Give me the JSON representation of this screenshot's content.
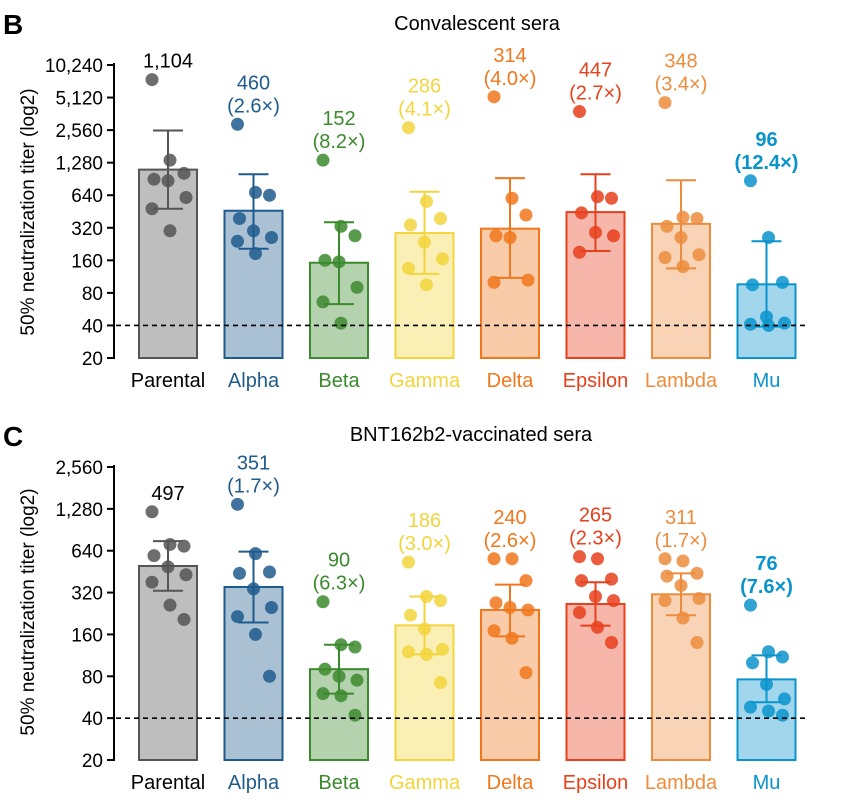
{
  "chart_data": [
    {
      "type": "bar",
      "panel": "B",
      "title": "Convalescent sera",
      "ylabel": "50% neutralization titer (log2)",
      "yscale": "log2",
      "ylim": [
        20,
        10240
      ],
      "yticks": [
        "20",
        "40",
        "80",
        "160",
        "320",
        "640",
        "1,280",
        "2,560",
        "5,120",
        "10,240"
      ],
      "threshold": 40,
      "categories": [
        "Parental",
        "Alpha",
        "Beta",
        "Gamma",
        "Delta",
        "Epsilon",
        "Lambda",
        "Mu"
      ],
      "colors": [
        "#555555",
        "#1e5b8c",
        "#3c8a2e",
        "#f2d53c",
        "#f0771c",
        "#e8401c",
        "#ec8c3c",
        "#0a94cc"
      ],
      "values": [
        1104,
        460,
        152,
        286,
        314,
        447,
        348,
        96
      ],
      "error_low": [
        480,
        205,
        63,
        120,
        110,
        195,
        135,
        39
      ],
      "error_high": [
        2540,
        1000,
        360,
        690,
        920,
        1000,
        880,
        240
      ],
      "labels": [
        "1,104",
        "460",
        "152",
        "286",
        "314",
        "447",
        "348",
        "96"
      ],
      "fold_labels": [
        "",
        "(2.6×)",
        "(8.2×)",
        "(4.1×)",
        "(4.0×)",
        "(2.7×)",
        "(3.4×)",
        "(12.4×)"
      ],
      "bold": [
        false,
        false,
        false,
        false,
        false,
        false,
        false,
        true
      ],
      "points": [
        [
          7500,
          1350,
          1020,
          900,
          870,
          610,
          480,
          300
        ],
        [
          2900,
          680,
          640,
          390,
          300,
          260,
          240,
          185
        ],
        [
          1350,
          330,
          270,
          160,
          155,
          90,
          66,
          42
        ],
        [
          2700,
          560,
          390,
          340,
          235,
          165,
          135,
          95
        ],
        [
          5200,
          600,
          420,
          270,
          260,
          105,
          100
        ],
        [
          3800,
          620,
          600,
          440,
          290,
          270,
          190
        ],
        [
          4600,
          400,
          390,
          330,
          260,
          180,
          170,
          140
        ],
        [
          870,
          260,
          100,
          95,
          48,
          42,
          41,
          40
        ]
      ]
    },
    {
      "type": "bar",
      "panel": "C",
      "title": "BNT162b2-vaccinated sera",
      "ylabel": "50% neutralization titer (log2)",
      "yscale": "log2",
      "ylim": [
        20,
        2560
      ],
      "yticks": [
        "20",
        "40",
        "80",
        "160",
        "320",
        "640",
        "1,280",
        "2,560"
      ],
      "threshold": 40,
      "categories": [
        "Parental",
        "Alpha",
        "Beta",
        "Gamma",
        "Delta",
        "Epsilon",
        "Lambda",
        "Mu"
      ],
      "colors": [
        "#555555",
        "#1e5b8c",
        "#3c8a2e",
        "#f2d53c",
        "#f0771c",
        "#e8401c",
        "#ec8c3c",
        "#0a94cc"
      ],
      "values": [
        497,
        351,
        90,
        186,
        240,
        265,
        311,
        76
      ],
      "error_low": [
        330,
        195,
        60,
        115,
        155,
        185,
        220,
        52
      ],
      "error_high": [
        750,
        630,
        135,
        300,
        365,
        380,
        440,
        113
      ],
      "labels": [
        "497",
        "351",
        "90",
        "186",
        "240",
        "265",
        "311",
        "76"
      ],
      "fold_labels": [
        "",
        "(1.7×)",
        "(6.3×)",
        "(3.0×)",
        "(2.6×)",
        "(2.3×)",
        "(1.7×)",
        "(7.6×)"
      ],
      "bold": [
        false,
        false,
        false,
        false,
        false,
        false,
        false,
        true
      ],
      "points": [
        [
          1220,
          710,
          690,
          590,
          490,
          430,
          380,
          260,
          205
        ],
        [
          1380,
          610,
          450,
          440,
          340,
          250,
          215,
          160,
          80
        ],
        [
          275,
          135,
          130,
          90,
          80,
          75,
          60,
          58,
          42
        ],
        [
          530,
          300,
          280,
          220,
          175,
          125,
          120,
          115,
          72
        ],
        [
          560,
          560,
          390,
          270,
          250,
          240,
          170,
          150,
          85
        ],
        [
          580,
          560,
          400,
          390,
          300,
          280,
          230,
          180,
          140
        ],
        [
          560,
          540,
          440,
          420,
          360,
          290,
          280,
          210,
          140
        ],
        [
          260,
          120,
          110,
          100,
          70,
          55,
          48,
          45,
          42
        ]
      ]
    }
  ]
}
